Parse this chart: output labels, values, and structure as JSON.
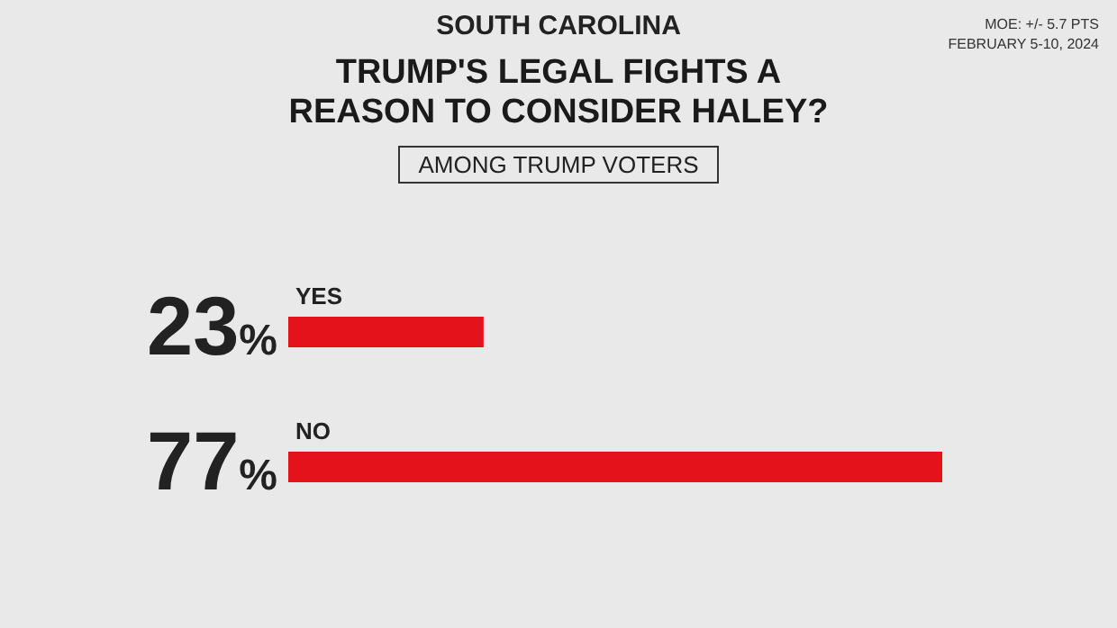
{
  "chart_data": {
    "type": "bar",
    "orientation": "horizontal",
    "subtitle": "SOUTH CAROLINA",
    "title": "TRUMP'S LEGAL FIGHTS A REASON TO CONSIDER HALEY?",
    "annotations": [
      "AMONG TRUMP VOTERS",
      "MOE: +/- 5.7 PTS",
      "FEBRUARY 5-10, 2024"
    ],
    "categories": [
      "YES",
      "NO"
    ],
    "values": [
      23,
      77
    ],
    "value_labels": [
      "23%",
      "77%"
    ],
    "color": "#e3121b"
  }
}
